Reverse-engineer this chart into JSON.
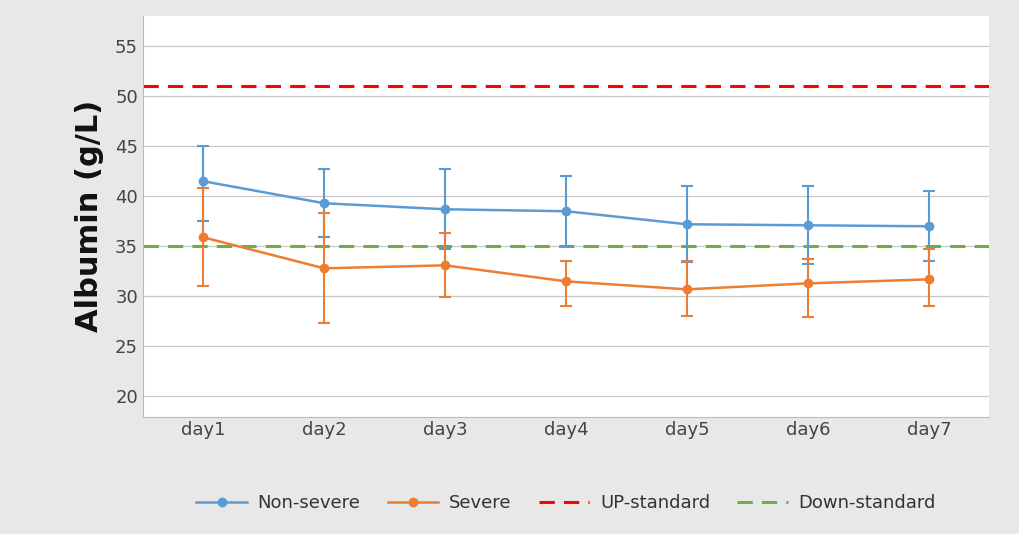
{
  "x_labels": [
    "day1",
    "day2",
    "day3",
    "day4",
    "day5",
    "day6",
    "day7"
  ],
  "x_values": [
    1,
    2,
    3,
    4,
    5,
    6,
    7
  ],
  "non_severe_mean": [
    41.5,
    39.3,
    38.7,
    38.5,
    37.2,
    37.1,
    37.0
  ],
  "non_severe_upper": [
    45.0,
    42.7,
    42.7,
    42.0,
    41.0,
    41.0,
    40.5
  ],
  "non_severe_lower": [
    37.5,
    35.9,
    34.7,
    35.0,
    33.4,
    33.2,
    33.5
  ],
  "severe_mean": [
    35.9,
    32.8,
    33.1,
    31.5,
    30.7,
    31.3,
    31.7
  ],
  "severe_upper": [
    40.8,
    38.3,
    36.3,
    33.5,
    33.5,
    33.7,
    34.7
  ],
  "severe_lower": [
    31.0,
    27.3,
    29.9,
    29.0,
    28.0,
    27.9,
    29.0
  ],
  "up_standard": 51.0,
  "down_standard": 35.0,
  "non_severe_color": "#5B9BD5",
  "severe_color": "#ED7D31",
  "up_standard_color": "#FF0000",
  "down_standard_color": "#70AD47",
  "ylabel": "Albumin (g/L)",
  "ylim": [
    18,
    58
  ],
  "yticks": [
    20,
    25,
    30,
    35,
    40,
    45,
    50,
    55
  ],
  "legend_labels": [
    "Non-severe",
    "Severe",
    "UP-standard",
    "Down-standard"
  ],
  "outer_background_color": "#e8e8e8",
  "plot_bg_color": "#ffffff",
  "grid_color": "#c8c8c8",
  "label_fontsize": 22,
  "tick_fontsize": 13,
  "legend_fontsize": 13
}
